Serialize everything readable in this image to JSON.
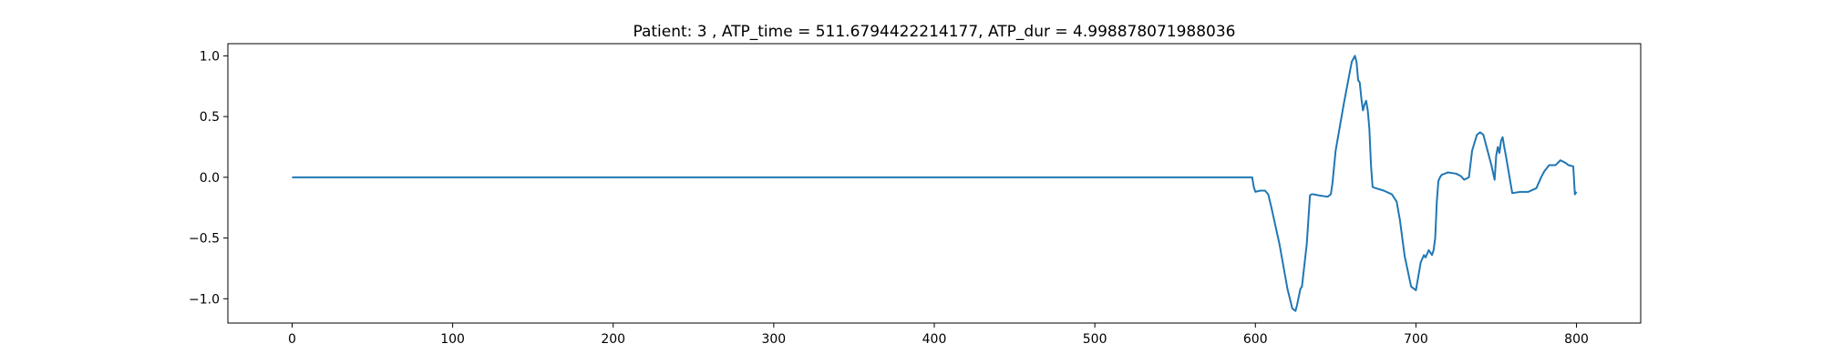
{
  "chart_data": {
    "type": "line",
    "title": "Patient: 3 , ATP_time = 511.6794422214177, ATP_dur = 4.998878071988036",
    "xlabel": "",
    "ylabel": "",
    "xlim": [
      -40,
      840
    ],
    "ylim": [
      -1.2,
      1.1
    ],
    "xticks": [
      0,
      100,
      200,
      300,
      400,
      500,
      600,
      700,
      800
    ],
    "yticks": [
      1.0,
      0.5,
      0.0,
      -0.5,
      -1.0
    ],
    "xtick_labels": [
      "0",
      "100",
      "200",
      "300",
      "400",
      "500",
      "600",
      "700",
      "800"
    ],
    "ytick_labels": [
      "1.0",
      "0.5",
      "0.0",
      "−0.5",
      "−1.0"
    ],
    "grid": false,
    "series": [
      {
        "color": "#1f77b4",
        "x": [
          0,
          100,
          200,
          300,
          400,
          500,
          598,
          599,
          600,
          603,
          606,
          608,
          610,
          615,
          620,
          623,
          625,
          626,
          628,
          629,
          632,
          634,
          635,
          636,
          640,
          645,
          647,
          648,
          650,
          655,
          660,
          662,
          663,
          664,
          665,
          666,
          667,
          668,
          669,
          670,
          671,
          672,
          673,
          675,
          680,
          685,
          688,
          690,
          693,
          697,
          700,
          703,
          705,
          706,
          708,
          709,
          710,
          711,
          712,
          713,
          714,
          715,
          716,
          720,
          725,
          728,
          730,
          733,
          735,
          738,
          740,
          742,
          744,
          745,
          747,
          749,
          750,
          751,
          752,
          753,
          754,
          755,
          756,
          760,
          765,
          768,
          770,
          775,
          778,
          780,
          783,
          785,
          787,
          790,
          793,
          795,
          798,
          799,
          800
        ],
        "y": [
          0,
          0,
          0,
          0,
          0,
          0,
          0,
          -0.08,
          -0.12,
          -0.11,
          -0.11,
          -0.14,
          -0.25,
          -0.55,
          -0.92,
          -1.08,
          -1.1,
          -1.05,
          -0.92,
          -0.9,
          -0.55,
          -0.15,
          -0.14,
          -0.14,
          -0.15,
          -0.16,
          -0.14,
          -0.05,
          0.22,
          0.6,
          0.95,
          1.0,
          0.95,
          0.8,
          0.78,
          0.65,
          0.55,
          0.6,
          0.63,
          0.55,
          0.4,
          0.1,
          -0.08,
          -0.09,
          -0.11,
          -0.14,
          -0.2,
          -0.35,
          -0.65,
          -0.9,
          -0.93,
          -0.7,
          -0.64,
          -0.66,
          -0.6,
          -0.62,
          -0.64,
          -0.6,
          -0.5,
          -0.2,
          -0.03,
          0.0,
          0.02,
          0.04,
          0.03,
          0.01,
          -0.02,
          0.0,
          0.22,
          0.35,
          0.37,
          0.35,
          0.25,
          0.2,
          0.1,
          -0.02,
          0.18,
          0.25,
          0.2,
          0.3,
          0.33,
          0.25,
          0.18,
          -0.13,
          -0.12,
          -0.12,
          -0.12,
          -0.09,
          0.0,
          0.05,
          0.1,
          0.1,
          0.1,
          0.14,
          0.12,
          0.1,
          0.09,
          -0.14,
          -0.12
        ]
      }
    ]
  }
}
